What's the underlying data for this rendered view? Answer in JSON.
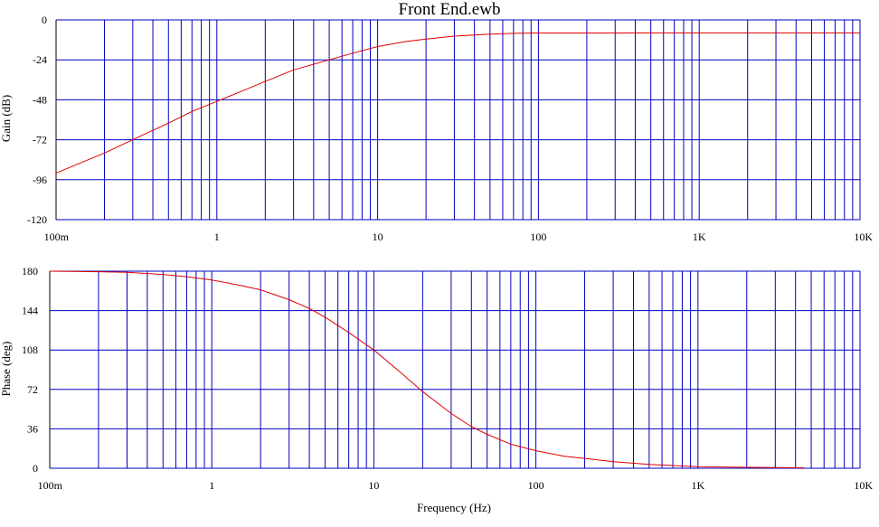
{
  "title": "Front End.ewb",
  "xlabel": "Frequency (Hz)",
  "colors": {
    "grid": "#0000c0",
    "curve": "#e00000",
    "frame": "#000000"
  },
  "chart_data": [
    {
      "type": "line",
      "name": "gain",
      "xscale": "log",
      "xlim": [
        0.1,
        10000
      ],
      "ylabel": "Gain (dB)",
      "ylim": [
        -120,
        0
      ],
      "yticks": [
        "0",
        "-24",
        "-48",
        "-72",
        "-96",
        "-120"
      ],
      "ytick_values": [
        0,
        -24,
        -48,
        -72,
        -96,
        -120
      ],
      "xticks": [
        "100m",
        "1",
        "10",
        "100",
        "1K",
        "10K"
      ],
      "xtick_values": [
        0.1,
        1,
        10,
        100,
        1000,
        10000
      ],
      "grid": true,
      "series": [
        {
          "x": [
            0.1,
            0.2,
            0.3,
            0.5,
            0.7,
            1,
            1.5,
            2,
            3,
            5,
            7,
            10,
            15,
            20,
            30,
            50,
            70,
            100,
            1000,
            10000
          ],
          "y": [
            -92,
            -80,
            -72,
            -62,
            -55,
            -49,
            -42,
            -37,
            -30,
            -24,
            -20,
            -16,
            -13,
            -11.5,
            -9.8,
            -8.6,
            -8.1,
            -7.9,
            -7.8,
            -7.8
          ]
        }
      ]
    },
    {
      "type": "line",
      "name": "phase",
      "xscale": "log",
      "xlim": [
        0.1,
        10000
      ],
      "ylabel": "Phase (deg)",
      "ylim": [
        0,
        180
      ],
      "yticks": [
        "180",
        "144",
        "108",
        "72",
        "36",
        "0"
      ],
      "ytick_values": [
        180,
        144,
        108,
        72,
        36,
        0
      ],
      "xticks": [
        "100m",
        "1",
        "10",
        "100",
        "1K",
        "10K"
      ],
      "xtick_values": [
        0.1,
        1,
        10,
        100,
        1000,
        10000
      ],
      "grid": true,
      "series": [
        {
          "x": [
            0.1,
            0.2,
            0.3,
            0.5,
            0.7,
            1,
            1.5,
            2,
            3,
            4,
            5,
            7,
            10,
            15,
            20,
            30,
            40,
            50,
            70,
            100,
            150,
            200,
            300,
            500,
            700,
            1000,
            2000,
            4500
          ],
          "y": [
            180,
            179.5,
            179,
            177,
            175,
            172,
            167,
            163,
            154,
            146,
            138,
            124,
            108,
            86,
            70,
            50,
            38,
            31,
            22,
            16,
            11,
            9,
            6,
            3.5,
            2.5,
            1.5,
            0.8,
            0.4
          ]
        }
      ]
    }
  ]
}
